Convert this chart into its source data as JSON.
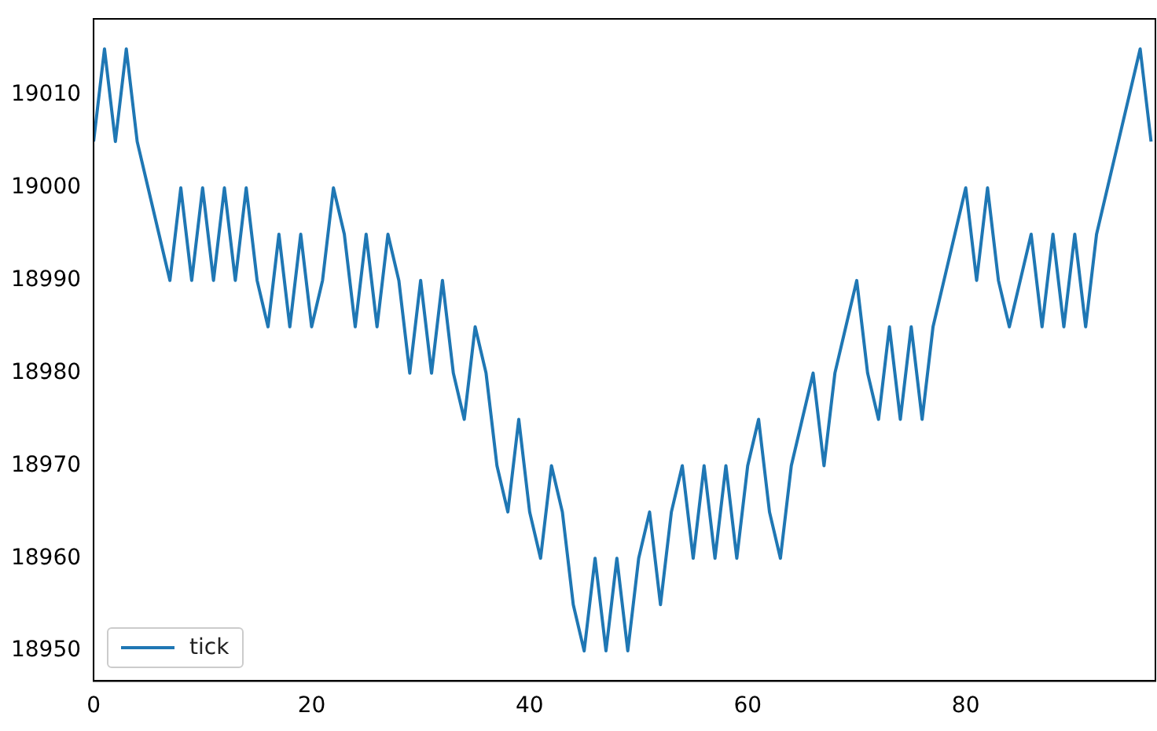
{
  "chart_data": {
    "type": "line",
    "x": [
      0,
      1,
      2,
      3,
      4,
      5,
      6,
      7,
      8,
      9,
      10,
      11,
      12,
      13,
      14,
      15,
      16,
      17,
      18,
      19,
      20,
      21,
      22,
      23,
      24,
      25,
      26,
      27,
      28,
      29,
      30,
      31,
      32,
      33,
      34,
      35,
      36,
      37,
      38,
      39,
      40,
      41,
      42,
      43,
      44,
      45,
      46,
      47,
      48,
      49,
      50,
      51,
      52,
      53,
      54,
      55,
      56,
      57,
      58,
      59,
      60,
      61,
      62,
      63,
      64,
      65,
      66,
      67,
      68,
      69,
      70,
      71,
      72,
      73,
      74,
      75,
      76,
      77,
      78,
      79,
      80,
      81,
      82,
      83,
      84,
      85,
      86,
      87,
      88,
      89,
      90,
      91,
      92,
      93,
      94,
      95,
      96,
      97
    ],
    "series": [
      {
        "name": "tick",
        "color": "#1f77b4",
        "values": [
          19005,
          19015,
          19005,
          19015,
          19005,
          19000,
          18995,
          18990,
          19000,
          18990,
          19000,
          18990,
          19000,
          18990,
          19000,
          18990,
          18985,
          18995,
          18985,
          18995,
          18985,
          18990,
          19000,
          18995,
          18985,
          18995,
          18985,
          18995,
          18990,
          18980,
          18990,
          18980,
          18990,
          18980,
          18975,
          18985,
          18980,
          18970,
          18965,
          18975,
          18965,
          18960,
          18970,
          18965,
          18955,
          18950,
          18960,
          18950,
          18960,
          18950,
          18960,
          18965,
          18955,
          18965,
          18970,
          18960,
          18970,
          18960,
          18970,
          18960,
          18970,
          18975,
          18965,
          18960,
          18970,
          18975,
          18980,
          18970,
          18980,
          18985,
          18990,
          18980,
          18975,
          18985,
          18975,
          18985,
          18975,
          18985,
          18990,
          18995,
          19000,
          18990,
          19000,
          18990,
          18985,
          18990,
          18995,
          18985,
          18995,
          18985,
          18995,
          18985,
          18995,
          19000,
          19005,
          19010,
          19015,
          19005
        ]
      }
    ],
    "xlim": [
      0,
      97.4
    ],
    "xticks": [
      0,
      20,
      40,
      60,
      80
    ],
    "ylim": [
      18946.75,
      19018.25
    ],
    "yticks": [
      18950,
      18960,
      18970,
      18980,
      18990,
      19000,
      19010
    ],
    "grid": false,
    "legend": "bottom left",
    "marker": "none",
    "line_style": "solid"
  }
}
